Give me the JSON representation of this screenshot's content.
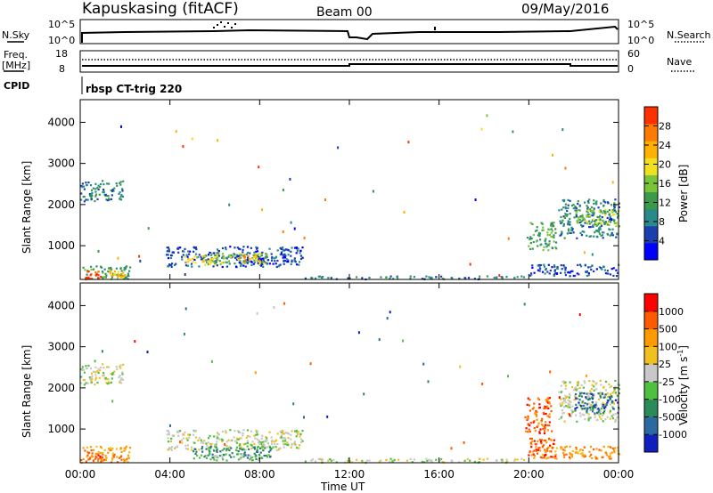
{
  "header": {
    "station": "Kapuskasing (fitACF)",
    "beam": "Beam 00",
    "date": "09/May/2016"
  },
  "summary": {
    "nsky_label": "N.Sky",
    "nsky_ticks": [
      "10^5",
      "10^0"
    ],
    "nsearch_label": "N.Search",
    "nsearch_ticks": [
      "10^5",
      "10^0"
    ],
    "freq_label_line1": "Freq.",
    "freq_label_line2": "[MHz]",
    "freq_ticks": [
      "18",
      "8"
    ],
    "nave_label": "Nave",
    "nave_ticks": [
      "60",
      "0"
    ],
    "cpid_label": "CPID",
    "cpid_text": "rbsp CT-trig 220"
  },
  "axes": {
    "x_ticks": [
      "00:00",
      "04:00",
      "08:00",
      "12:00",
      "16:00",
      "20:00",
      "00:00"
    ],
    "x_label": "Time UT",
    "y_ticks": [
      "4000",
      "3000",
      "2000",
      "1000"
    ],
    "y_label": "Slant Range [km]"
  },
  "power_colorbar": {
    "label": "Power [dB]",
    "ticks": [
      "28",
      "24",
      "20",
      "16",
      "12",
      "8",
      "4"
    ],
    "colors": [
      "#0000ff",
      "#1a40b0",
      "#2a8a8a",
      "#3a9a4a",
      "#7ac43a",
      "#f0e020",
      "#ffb000",
      "#ff7a00",
      "#ff3000"
    ]
  },
  "velocity_colorbar": {
    "label": "Velocity [m s",
    "label_exp": "-1",
    "label_end": "]",
    "ticks": [
      "1000",
      "500",
      "100",
      "25",
      "-25",
      "-100",
      "-500",
      "-1000"
    ],
    "colors": [
      "#1020c0",
      "#2a6aa0",
      "#2a8a5a",
      "#50c040",
      "#c8c8c8",
      "#f0c020",
      "#ff9a00",
      "#ff5a00",
      "#ff0000"
    ]
  },
  "chart_data": {
    "type": "heatmap",
    "x_unit": "hours UT",
    "xlim": [
      0,
      24
    ],
    "ylim": [
      180,
      4550
    ],
    "panels": [
      {
        "quantity": "Power",
        "regions": [
          {
            "t": [
              0.0,
              1.95
            ],
            "r": [
              2100,
              2600
            ],
            "level": 2
          },
          {
            "t": [
              0.0,
              2.2
            ],
            "r": [
              200,
              520
            ],
            "level": 3
          },
          {
            "t": [
              0.2,
              0.9
            ],
            "r": [
              200,
              400
            ],
            "level": 8
          },
          {
            "t": [
              1.2,
              2.0
            ],
            "r": [
              220,
              420
            ],
            "level": 6
          },
          {
            "t": [
              3.8,
              9.9
            ],
            "r": [
              500,
              1000
            ],
            "level": 1
          },
          {
            "t": [
              5.5,
              8.3
            ],
            "r": [
              550,
              850
            ],
            "level": 4
          },
          {
            "t": [
              7.0,
              8.0
            ],
            "r": [
              600,
              800
            ],
            "level": 6
          },
          {
            "t": [
              4.5,
              6.0
            ],
            "r": [
              600,
              800
            ],
            "level": 5
          },
          {
            "t": [
              19.9,
              21.2
            ],
            "r": [
              900,
              1600
            ],
            "level": 3
          },
          {
            "t": [
              21.3,
              24.0
            ],
            "r": [
              1200,
              2150
            ],
            "level": 2
          },
          {
            "t": [
              22.0,
              24.0
            ],
            "r": [
              1500,
              1900
            ],
            "level": 4
          },
          {
            "t": [
              20.0,
              24.0
            ],
            "r": [
              280,
              560
            ],
            "level": 1
          },
          {
            "t": [
              10.0,
              20.0
            ],
            "r": [
              200,
              280
            ],
            "level": 2
          }
        ]
      },
      {
        "quantity": "Velocity",
        "regions": [
          {
            "t": [
              0.0,
              1.95
            ],
            "r": [
              2100,
              2600
            ],
            "level": 4
          },
          {
            "t": [
              0.0,
              2.2
            ],
            "r": [
              200,
              600
            ],
            "level": 6
          },
          {
            "t": [
              0.2,
              1.0
            ],
            "r": [
              250,
              450
            ],
            "level": 7
          },
          {
            "t": [
              3.8,
              9.9
            ],
            "r": [
              500,
              1000
            ],
            "level": 4
          },
          {
            "t": [
              5.0,
              8.5
            ],
            "r": [
              300,
              600
            ],
            "level": 2
          },
          {
            "t": [
              5.5,
              8.0
            ],
            "r": [
              250,
              450
            ],
            "level": 3
          },
          {
            "t": [
              19.8,
              21.0
            ],
            "r": [
              900,
              1800
            ],
            "level": 7
          },
          {
            "t": [
              19.9,
              21.2
            ],
            "r": [
              300,
              800
            ],
            "level": 7
          },
          {
            "t": [
              21.3,
              24.0
            ],
            "r": [
              1200,
              2200
            ],
            "level": 4
          },
          {
            "t": [
              22.0,
              24.0
            ],
            "r": [
              1400,
              1900
            ],
            "level": 1
          },
          {
            "t": [
              10.0,
              20.0
            ],
            "r": [
              200,
              300
            ],
            "level": 4
          },
          {
            "t": [
              20.0,
              24.0
            ],
            "r": [
              300,
              600
            ],
            "level": 6
          }
        ]
      }
    ]
  }
}
